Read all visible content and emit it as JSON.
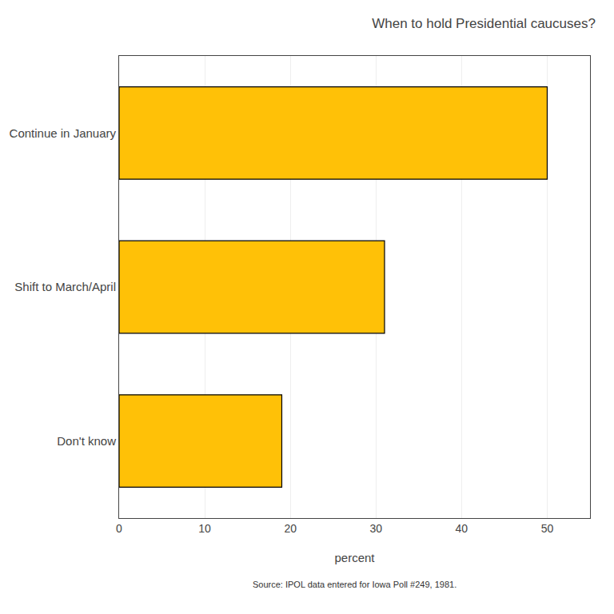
{
  "chart_data": {
    "type": "bar",
    "orientation": "horizontal",
    "title": "When to hold Presidential caucuses?",
    "categories": [
      "Don't know",
      "Shift to March/April",
      "Continue in January"
    ],
    "values": [
      19,
      31,
      50
    ],
    "color": "#FFC107",
    "xlabel": "percent",
    "xlim": [
      0,
      55
    ],
    "xticks": [
      0,
      10,
      20,
      30,
      40,
      50
    ],
    "grid": true,
    "source": "Source: IPOL data entered for Iowa Poll #249, 1981."
  }
}
